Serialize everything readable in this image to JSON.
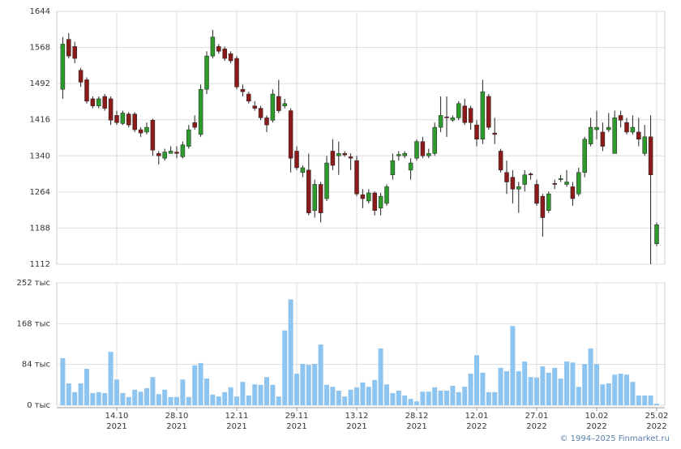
{
  "chart_data": [
    {
      "type": "candlestick",
      "open": [
        1480,
        1585,
        1570,
        1520,
        1500,
        1460,
        1445,
        1465,
        1460,
        1425,
        1408,
        1428,
        1428,
        1395,
        1390,
        1415,
        1345,
        1335,
        1345,
        1348,
        1338,
        1360,
        1410,
        1385,
        1480,
        1550,
        1570,
        1565,
        1555,
        1545,
        1480,
        1470,
        1445,
        1440,
        1420,
        1415,
        1465,
        1445,
        1435,
        1350,
        1305,
        1310,
        1225,
        1280,
        1250,
        1350,
        1340,
        1345,
        1338,
        1330,
        1258,
        1245,
        1262,
        1230,
        1240,
        1300,
        1340,
        1340,
        1310,
        1335,
        1370,
        1340,
        1345,
        1400,
        1422,
        1415,
        1420,
        1445,
        1440,
        1405,
        1375,
        1465,
        1388,
        1350,
        1305,
        1295,
        1270,
        1280,
        1302,
        1280,
        1255,
        1225,
        1282,
        1290,
        1280,
        1275,
        1260,
        1305,
        1365,
        1395,
        1390,
        1395,
        1345,
        1425,
        1410,
        1390,
        1390,
        1345,
        1380,
        1155
      ],
      "high": [
        1590,
        1598,
        1580,
        1525,
        1505,
        1465,
        1465,
        1470,
        1465,
        1435,
        1435,
        1432,
        1432,
        1400,
        1410,
        1418,
        1350,
        1355,
        1360,
        1360,
        1370,
        1405,
        1425,
        1490,
        1560,
        1605,
        1575,
        1570,
        1560,
        1550,
        1490,
        1475,
        1455,
        1445,
        1425,
        1480,
        1500,
        1460,
        1440,
        1360,
        1320,
        1345,
        1290,
        1285,
        1340,
        1375,
        1370,
        1350,
        1345,
        1340,
        1270,
        1270,
        1265,
        1262,
        1280,
        1345,
        1350,
        1350,
        1335,
        1375,
        1380,
        1355,
        1410,
        1465,
        1465,
        1425,
        1455,
        1460,
        1445,
        1415,
        1500,
        1470,
        1420,
        1355,
        1330,
        1310,
        1285,
        1310,
        1305,
        1290,
        1260,
        1265,
        1290,
        1300,
        1310,
        1285,
        1315,
        1380,
        1420,
        1435,
        1410,
        1430,
        1435,
        1435,
        1420,
        1425,
        1420,
        1405,
        1425,
        1200
      ],
      "low": [
        1460,
        1545,
        1535,
        1485,
        1450,
        1440,
        1440,
        1435,
        1405,
        1405,
        1405,
        1400,
        1390,
        1380,
        1385,
        1340,
        1322,
        1330,
        1345,
        1335,
        1335,
        1355,
        1395,
        1380,
        1470,
        1545,
        1555,
        1540,
        1535,
        1480,
        1465,
        1450,
        1435,
        1415,
        1390,
        1410,
        1430,
        1440,
        1305,
        1310,
        1295,
        1215,
        1210,
        1200,
        1245,
        1310,
        1300,
        1338,
        1310,
        1255,
        1230,
        1240,
        1215,
        1215,
        1235,
        1290,
        1330,
        1335,
        1290,
        1330,
        1335,
        1335,
        1340,
        1390,
        1380,
        1412,
        1415,
        1405,
        1395,
        1360,
        1365,
        1395,
        1365,
        1305,
        1260,
        1240,
        1220,
        1265,
        1290,
        1235,
        1170,
        1220,
        1270,
        1285,
        1275,
        1235,
        1255,
        1295,
        1360,
        1375,
        1350,
        1390,
        1345,
        1400,
        1385,
        1385,
        1360,
        1340,
        1112,
        1150
      ],
      "close": [
        1575,
        1550,
        1545,
        1495,
        1455,
        1445,
        1460,
        1440,
        1415,
        1410,
        1430,
        1405,
        1395,
        1388,
        1400,
        1352,
        1340,
        1348,
        1350,
        1345,
        1363,
        1395,
        1400,
        1480,
        1550,
        1590,
        1560,
        1545,
        1540,
        1485,
        1475,
        1455,
        1440,
        1420,
        1405,
        1470,
        1435,
        1450,
        1335,
        1315,
        1315,
        1220,
        1280,
        1220,
        1325,
        1320,
        1345,
        1342,
        1335,
        1260,
        1250,
        1262,
        1225,
        1255,
        1275,
        1330,
        1343,
        1345,
        1325,
        1370,
        1340,
        1345,
        1400,
        1425,
        1420,
        1420,
        1450,
        1410,
        1410,
        1375,
        1475,
        1400,
        1385,
        1310,
        1285,
        1270,
        1275,
        1300,
        1300,
        1240,
        1210,
        1260,
        1280,
        1292,
        1285,
        1250,
        1305,
        1375,
        1400,
        1400,
        1360,
        1400,
        1420,
        1415,
        1390,
        1400,
        1375,
        1380,
        1300,
        1195
      ],
      "up_color": "#2e9a2e",
      "down_color": "#8b1a1a",
      "ylim": [
        1112,
        1644
      ],
      "yticks": [
        1112,
        1188,
        1264,
        1340,
        1416,
        1492,
        1568,
        1644
      ],
      "grid": true
    },
    {
      "type": "bar",
      "categories": [
        null,
        null,
        null,
        null,
        null,
        null,
        null,
        null,
        null,
        "14.10 2021",
        null,
        null,
        null,
        null,
        null,
        null,
        null,
        null,
        null,
        "28.10 2021",
        null,
        null,
        null,
        null,
        null,
        null,
        null,
        null,
        null,
        "12.11 2021",
        null,
        null,
        null,
        null,
        null,
        null,
        null,
        null,
        null,
        "29.11 2021",
        null,
        null,
        null,
        null,
        null,
        null,
        null,
        null,
        null,
        "13.12 2021",
        null,
        null,
        null,
        null,
        null,
        null,
        null,
        null,
        null,
        "28.12 2021",
        null,
        null,
        null,
        null,
        null,
        null,
        null,
        null,
        null,
        "12.01 2022",
        null,
        null,
        null,
        null,
        null,
        null,
        null,
        null,
        null,
        "27.01 2022",
        null,
        null,
        null,
        null,
        null,
        null,
        null,
        null,
        null,
        "10.02 2022",
        null,
        null,
        null,
        null,
        null,
        null,
        null,
        null,
        null,
        "25.02 2022"
      ],
      "values": [
        97,
        45,
        27,
        45,
        75,
        25,
        27,
        25,
        110,
        53,
        25,
        17,
        32,
        28,
        35,
        58,
        23,
        32,
        17,
        17,
        53,
        17,
        82,
        87,
        55,
        22,
        18,
        27,
        37,
        18,
        48,
        20,
        43,
        42,
        58,
        42,
        18,
        154,
        218,
        65,
        85,
        83,
        85,
        125,
        42,
        38,
        30,
        18,
        32,
        37,
        47,
        38,
        52,
        117,
        43,
        25,
        30,
        20,
        13,
        8,
        28,
        28,
        37,
        30,
        30,
        40,
        27,
        38,
        65,
        103,
        67,
        27,
        27,
        77,
        70,
        163,
        70,
        90,
        58,
        57,
        80,
        67,
        77,
        55,
        90,
        88,
        38,
        85,
        117,
        85,
        43,
        45,
        63,
        65,
        63,
        48,
        20,
        20,
        20,
        3
      ],
      "color": "#8ec5f0",
      "ylim": [
        0,
        252
      ],
      "yticks": [
        {
          "value": 0,
          "label": "0 тыс"
        },
        {
          "value": 84,
          "label": "84 тыс"
        },
        {
          "value": 168,
          "label": "168 тыс"
        },
        {
          "value": 252,
          "label": "252 тыс"
        }
      ],
      "grid": true
    }
  ],
  "footer": "© 1994–2025 Finmarket.ru"
}
